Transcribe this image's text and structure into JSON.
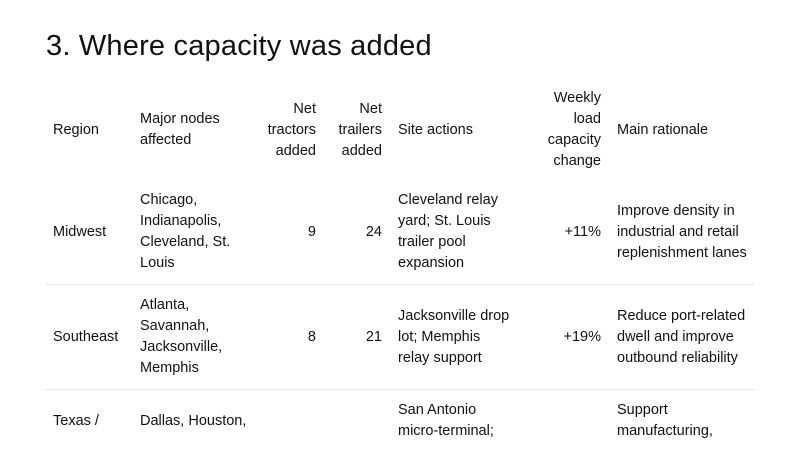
{
  "title": "3. Where capacity was added",
  "table": {
    "header": {
      "region": "Region",
      "nodes": "Major nodes affected",
      "tractors": "Net tractors added",
      "trailers": "Net trailers added",
      "actions": "Site actions",
      "change": "Weekly load capacity change",
      "rationale": "Main rationale"
    },
    "rows": [
      {
        "region": "Midwest",
        "nodes": "Chicago, Indianapolis, Cleveland, St. Louis",
        "tractors": 9,
        "trailers": 24,
        "actions": "Cleveland relay yard; St. Louis trailer pool expansion",
        "change": "+11%",
        "rationale": "Improve density in industrial and retail replenishment lanes"
      },
      {
        "region": "Southeast",
        "nodes": "Atlanta, Savannah, Jacksonville, Memphis",
        "tractors": 8,
        "trailers": 21,
        "actions": "Jacksonville drop lot; Memphis relay support",
        "change": "+19%",
        "rationale": "Reduce port-related dwell and improve outbound reliability"
      },
      {
        "region": "Texas /",
        "nodes": "Dallas, Houston,",
        "actions": "San Antonio micro-terminal;",
        "rationale": "Support manufacturing,"
      }
    ]
  }
}
